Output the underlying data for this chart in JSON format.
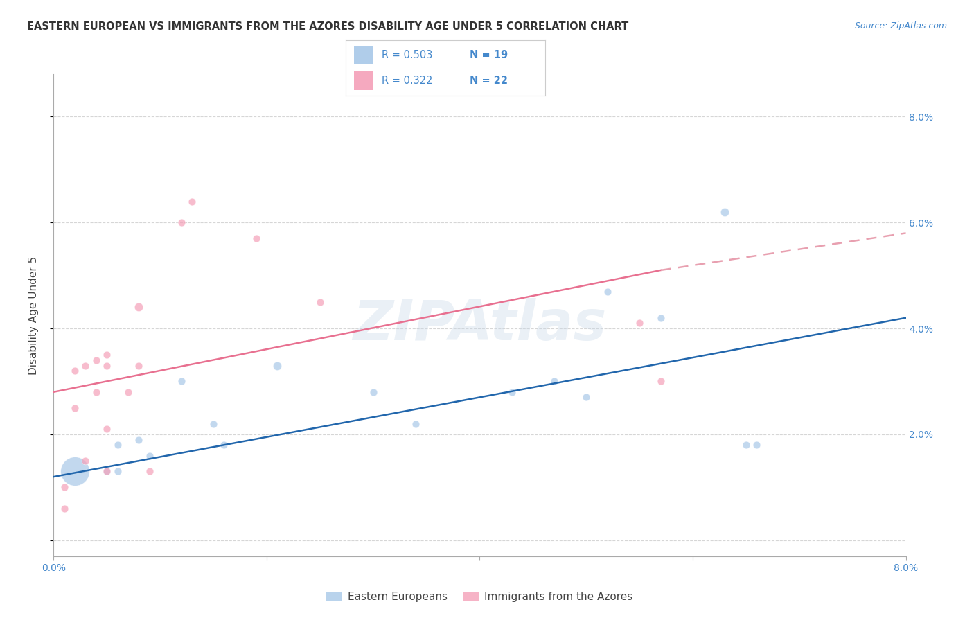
{
  "title": "EASTERN EUROPEAN VS IMMIGRANTS FROM THE AZORES DISABILITY AGE UNDER 5 CORRELATION CHART",
  "source": "Source: ZipAtlas.com",
  "ylabel": "Disability Age Under 5",
  "legend_label_blue": "Eastern Europeans",
  "legend_label_pink": "Immigrants from the Azores",
  "watermark": "ZIPAtlas",
  "xlim": [
    0.0,
    0.08
  ],
  "ylim": [
    -0.003,
    0.088
  ],
  "blue_points": [
    [
      0.002,
      0.013,
      900
    ],
    [
      0.005,
      0.013,
      60
    ],
    [
      0.006,
      0.013,
      60
    ],
    [
      0.006,
      0.018,
      60
    ],
    [
      0.008,
      0.019,
      60
    ],
    [
      0.009,
      0.016,
      60
    ],
    [
      0.012,
      0.03,
      60
    ],
    [
      0.015,
      0.022,
      60
    ],
    [
      0.016,
      0.018,
      60
    ],
    [
      0.021,
      0.033,
      80
    ],
    [
      0.03,
      0.028,
      60
    ],
    [
      0.034,
      0.022,
      60
    ],
    [
      0.043,
      0.028,
      60
    ],
    [
      0.047,
      0.03,
      60
    ],
    [
      0.05,
      0.027,
      60
    ],
    [
      0.052,
      0.047,
      60
    ],
    [
      0.057,
      0.042,
      60
    ],
    [
      0.063,
      0.062,
      80
    ],
    [
      0.065,
      0.018,
      60
    ],
    [
      0.066,
      0.018,
      60
    ]
  ],
  "pink_points": [
    [
      0.001,
      0.006,
      60
    ],
    [
      0.001,
      0.01,
      60
    ],
    [
      0.002,
      0.025,
      60
    ],
    [
      0.002,
      0.032,
      60
    ],
    [
      0.003,
      0.015,
      60
    ],
    [
      0.003,
      0.033,
      60
    ],
    [
      0.004,
      0.028,
      60
    ],
    [
      0.004,
      0.034,
      60
    ],
    [
      0.005,
      0.013,
      60
    ],
    [
      0.005,
      0.021,
      60
    ],
    [
      0.005,
      0.033,
      60
    ],
    [
      0.005,
      0.035,
      60
    ],
    [
      0.007,
      0.028,
      60
    ],
    [
      0.008,
      0.033,
      60
    ],
    [
      0.008,
      0.044,
      80
    ],
    [
      0.009,
      0.013,
      60
    ],
    [
      0.012,
      0.06,
      60
    ],
    [
      0.013,
      0.064,
      60
    ],
    [
      0.019,
      0.057,
      60
    ],
    [
      0.025,
      0.045,
      60
    ],
    [
      0.055,
      0.041,
      60
    ],
    [
      0.057,
      0.03,
      60
    ]
  ],
  "blue_line": [
    [
      0.0,
      0.012
    ],
    [
      0.08,
      0.042
    ]
  ],
  "pink_line_solid": [
    [
      0.0,
      0.028
    ],
    [
      0.057,
      0.051
    ]
  ],
  "pink_line_dashed": [
    [
      0.057,
      0.051
    ],
    [
      0.08,
      0.058
    ]
  ],
  "blue_color": "#a8c8e8",
  "pink_color": "#f4a0b8",
  "blue_line_color": "#2166ac",
  "pink_line_color": "#e87090",
  "pink_dashed_color": "#e8a0b0",
  "grid_color": "#cccccc",
  "watermark_color": "#c8d8e8",
  "tick_color": "#4488cc",
  "title_color": "#333333",
  "yticks": [
    0.0,
    0.02,
    0.04,
    0.06,
    0.08
  ],
  "xticks": [
    0.0,
    0.02,
    0.04,
    0.06,
    0.08
  ],
  "title_fontsize": 10.5,
  "axis_label_fontsize": 10,
  "tick_fontsize": 10,
  "legend_fontsize": 11
}
